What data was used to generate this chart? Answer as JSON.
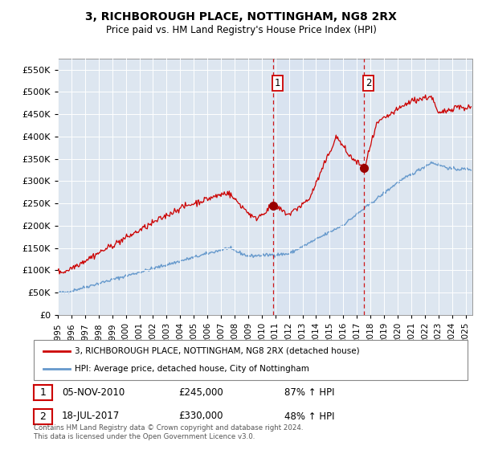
{
  "title": "3, RICHBOROUGH PLACE, NOTTINGHAM, NG8 2RX",
  "subtitle": "Price paid vs. HM Land Registry's House Price Index (HPI)",
  "ylim": [
    0,
    575000
  ],
  "yticks": [
    0,
    50000,
    100000,
    150000,
    200000,
    250000,
    300000,
    350000,
    400000,
    450000,
    500000,
    550000
  ],
  "xlim_start": 1995.0,
  "xlim_end": 2025.5,
  "transactions": [
    {
      "label": "1",
      "date_str": "05-NOV-2010",
      "date_x": 2010.85,
      "price": 245000,
      "pct": "87% ↑ HPI"
    },
    {
      "label": "2",
      "date_str": "18-JUL-2017",
      "date_x": 2017.54,
      "price": 330000,
      "pct": "48% ↑ HPI"
    }
  ],
  "legend_line1": "3, RICHBOROUGH PLACE, NOTTINGHAM, NG8 2RX (detached house)",
  "legend_line2": "HPI: Average price, detached house, City of Nottingham",
  "footer": "Contains HM Land Registry data © Crown copyright and database right 2024.\nThis data is licensed under the Open Government Licence v3.0.",
  "red_color": "#cc0000",
  "blue_color": "#6699cc",
  "background_plot": "#dde6f0",
  "annotation_box_color": "#cc0000",
  "grid_color": "#ffffff"
}
